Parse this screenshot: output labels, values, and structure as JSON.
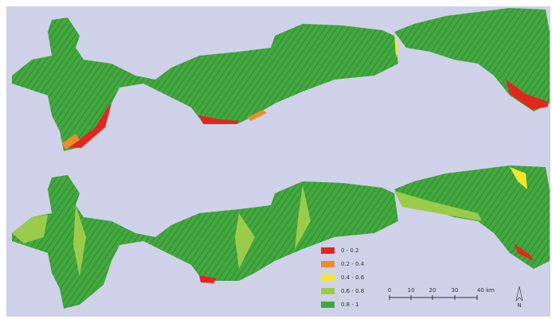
{
  "legend": {
    "items": [
      {
        "label": "0 - 0.2",
        "color": "#e3261e"
      },
      {
        "label": "0.2 - 0.4",
        "color": "#f08a2a"
      },
      {
        "label": "0.4 - 0.6",
        "color": "#f2e52e"
      },
      {
        "label": "0.6 - 0.8",
        "color": "#9acb4a"
      },
      {
        "label": "0.8 - 1",
        "color": "#3fa73c"
      }
    ]
  },
  "scale_bar": {
    "labels": [
      "0",
      "10",
      "20",
      "30",
      "40 km"
    ]
  },
  "north_arrow": {
    "label": "N"
  }
}
